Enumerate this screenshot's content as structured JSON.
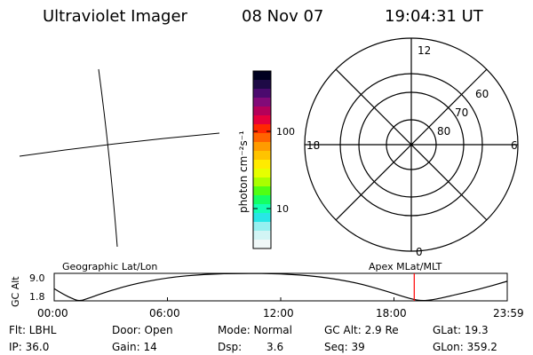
{
  "header": {
    "instrument": "Ultraviolet Imager",
    "date": "08 Nov 07",
    "time": "19:04:31 UT"
  },
  "colorbar": {
    "unit_label": "photon cm⁻²s⁻¹",
    "tick_100": "100",
    "tick_10": "10",
    "colors": [
      "#000020",
      "#1e0a46",
      "#4b0a6e",
      "#820a78",
      "#b4005a",
      "#e6003c",
      "#ff2800",
      "#ff6400",
      "#ff9b00",
      "#ffc300",
      "#ffeb00",
      "#e6ff00",
      "#aaff00",
      "#50ff14",
      "#14ff64",
      "#14ffb4",
      "#28e6e6",
      "#96f0f0",
      "#d2f5f5",
      "#f0f8f8"
    ]
  },
  "polar_plot": {
    "mlt_top": "12",
    "mlt_left": "18",
    "mlt_right": "6",
    "mlt_bottom": "0",
    "lat_60": "60",
    "lat_70": "70",
    "lat_80": "80"
  },
  "orbit_plot": {
    "title_left": "Geographic Lat/Lon",
    "title_right": "Apex MLat/MLT",
    "y_axis_label": "GC Alt",
    "y_top": "9.0",
    "y_bottom": "1.8",
    "x_ticks": [
      "00:00",
      "06:00",
      "12:00",
      "18:00",
      "23:59"
    ],
    "marker_hour": 19.075,
    "y_range": [
      1.8,
      9.0
    ],
    "altitude_curve": [
      [
        0,
        5.0
      ],
      [
        0.5,
        3.5
      ],
      [
        1.0,
        2.3
      ],
      [
        1.3,
        1.8
      ],
      [
        1.6,
        2.1
      ],
      [
        2.5,
        3.7
      ],
      [
        4.0,
        6.0
      ],
      [
        6.0,
        7.9
      ],
      [
        8.0,
        8.8
      ],
      [
        10.0,
        9.0
      ],
      [
        12.0,
        8.9
      ],
      [
        14.0,
        8.2
      ],
      [
        16.0,
        6.6
      ],
      [
        17.5,
        4.5
      ],
      [
        18.5,
        2.9
      ],
      [
        19.3,
        1.8
      ],
      [
        20.0,
        2.0
      ],
      [
        21.0,
        3.1
      ],
      [
        22.5,
        4.8
      ],
      [
        23.98,
        6.9
      ]
    ],
    "marker_color": "#ff0000"
  },
  "info": {
    "flt": "Flt: LBHL",
    "door": "Door: Open",
    "mode": "Mode: Normal",
    "gc_alt": "GC Alt: 2.9 Re",
    "glat": "GLat:  19.3",
    "ip": "IP: 36.0",
    "gain": "Gain: 14",
    "dsp_label": "Dsp:",
    "dsp_value": "3.6",
    "seq": "Seq: 39",
    "glon": "GLon: 359.2"
  }
}
